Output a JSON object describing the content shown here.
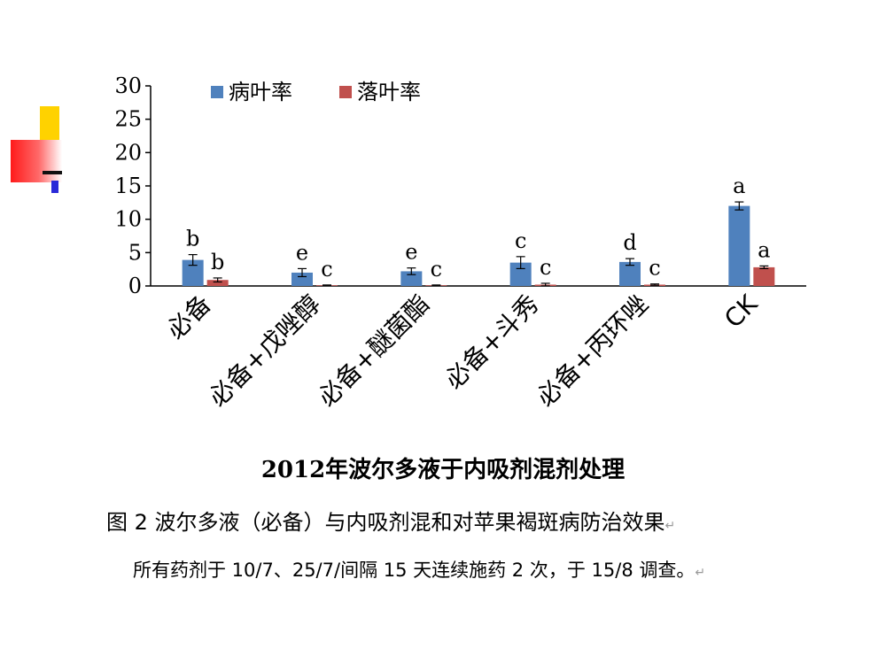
{
  "chart_data": {
    "type": "bar",
    "title": "2012年波尔多液于内吸剂混剂处理",
    "categories": [
      "必备",
      "必备+戊唑醇",
      "必备+醚菌酯",
      "必备+斗秀",
      "必备+丙环唑",
      "CK"
    ],
    "series": [
      {
        "name": "病叶率",
        "color": "#4f81bd",
        "values": [
          3.9,
          2.0,
          2.2,
          3.5,
          3.6,
          12.0
        ],
        "errors": [
          0.8,
          0.6,
          0.5,
          0.9,
          0.5,
          0.6
        ],
        "labels": [
          "b",
          "e",
          "e",
          "c",
          "d",
          "a"
        ]
      },
      {
        "name": "落叶率",
        "color": "#c0504d",
        "values": [
          0.9,
          0.1,
          0.1,
          0.2,
          0.2,
          2.8
        ],
        "errors": [
          0.3,
          0.05,
          0.05,
          0.2,
          0.1,
          0.2
        ],
        "labels": [
          "b",
          "c",
          "c",
          "c",
          "c",
          "a"
        ]
      }
    ],
    "yticks": [
      0,
      5,
      10,
      15,
      20,
      25,
      30
    ],
    "ylim": [
      0,
      30
    ],
    "legend": "top",
    "grid": false
  },
  "caption": {
    "line1": "图 2 波尔多液（必备）与内吸剂混和对苹果褐斑病防治效果",
    "line2": "所有药剂于 10/7、25/7/间隔 15 天连续施药 2 次，于 15/8 调查。",
    "return_mark": "↵"
  }
}
